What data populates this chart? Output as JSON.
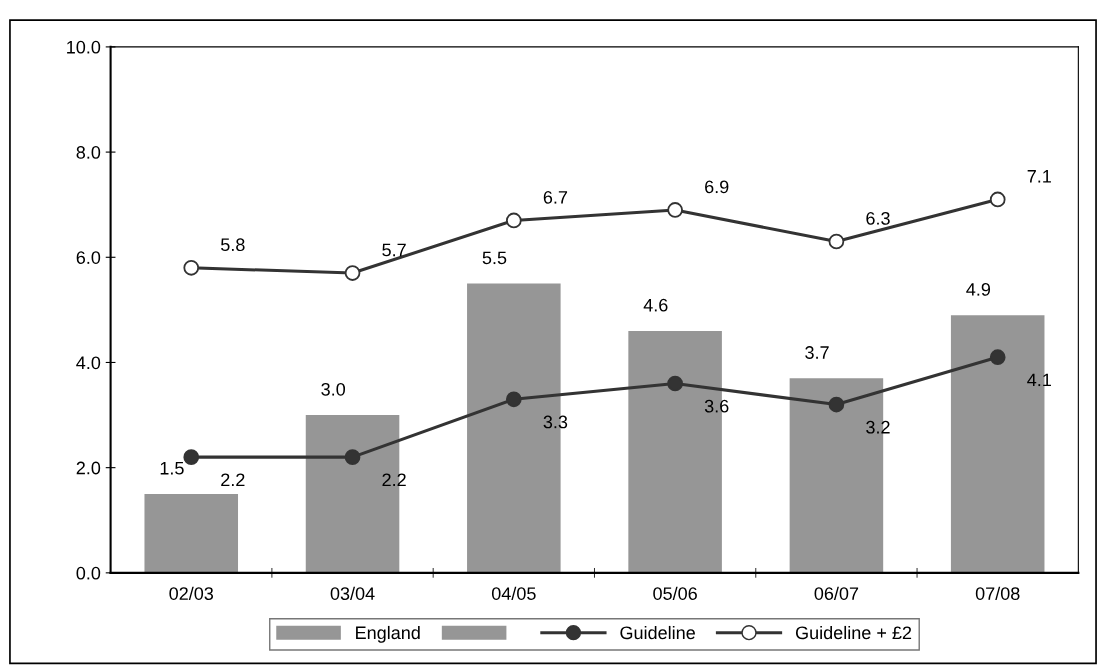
{
  "chart_data": {
    "type": "bar",
    "categories": [
      "02/03",
      "03/04",
      "04/05",
      "05/06",
      "06/07",
      "07/08"
    ],
    "series": [
      {
        "name": "England",
        "color": "#969696",
        "values": [
          1.5,
          3.0,
          5.5,
          4.6,
          3.7,
          4.9
        ],
        "value_labels": [
          "1.5",
          "3.0",
          "5.5",
          "4.6",
          "3.7",
          "4.9"
        ]
      },
      {
        "color": "#969696",
        "values": [
          null,
          null,
          null,
          null,
          null,
          null
        ]
      },
      {
        "name": "Guideline",
        "type": "line",
        "color": "#333333",
        "marker": "circle",
        "values": [
          2.2,
          2.2,
          3.3,
          3.6,
          3.2,
          4.1
        ],
        "value_labels": [
          "2.2",
          "2.2",
          "3.3",
          "3.6",
          "3.2",
          "4.1"
        ]
      },
      {
        "name": "Guideline + £2",
        "type": "line",
        "color": "#333333",
        "marker": "open circle",
        "values": [
          5.8,
          5.7,
          6.7,
          6.9,
          6.3,
          7.1
        ],
        "value_labels": [
          "5.8",
          "5.7",
          "6.7",
          "6.9",
          "6.3",
          "7.1"
        ]
      }
    ],
    "ylim": [
      0,
      10
    ],
    "yticks": [
      {
        "value": 0,
        "label": "0.0"
      },
      {
        "value": 2,
        "label": "2.0"
      },
      {
        "value": 4,
        "label": "4.0"
      },
      {
        "value": 6,
        "label": "6.0"
      },
      {
        "value": 8,
        "label": "8.0"
      },
      {
        "value": 10,
        "label": "10.0"
      }
    ],
    "legend": "bottom",
    "grid": false
  }
}
